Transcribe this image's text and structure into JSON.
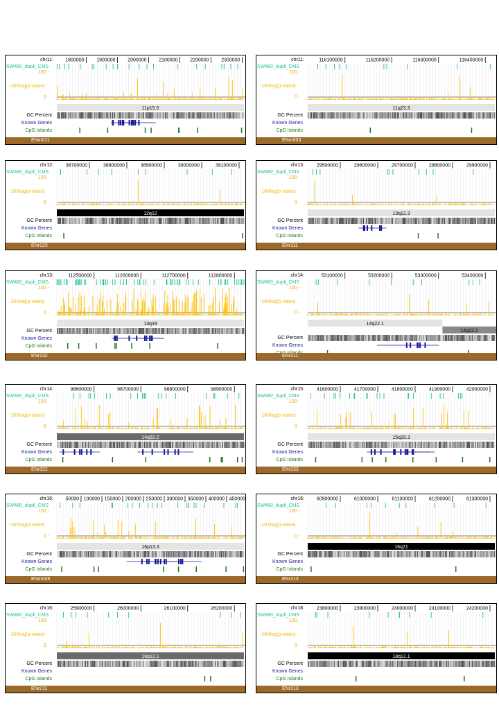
{
  "panels": [
    {
      "chrom": "chr11:",
      "ticks": [
        "1800000",
        "1900000",
        "2000000",
        "2100000",
        "2200000",
        "2300000"
      ],
      "band": "11p15.5",
      "band_style": "light",
      "enc": "ENm011",
      "signal": "mid"
    },
    {
      "chrom": "chr11:",
      "ticks": [
        "116100000",
        "116200000",
        "116300000",
        "116400000"
      ],
      "band": "11q23.3",
      "band_style": "light",
      "enc": "ENm003",
      "signal": "low"
    },
    {
      "chrom": "chr12:",
      "ticks": [
        "38700000",
        "38800000",
        "38900000",
        "39000000",
        "39100000"
      ],
      "band": "12q12",
      "band_style": "dark",
      "enc": "ENr123",
      "signal": "low"
    },
    {
      "chrom": "chr13:",
      "ticks": [
        "29500000",
        "29600000",
        "29700000",
        "29800000",
        "29900000"
      ],
      "band": "13q12.3",
      "band_style": "light",
      "enc": "ENr111",
      "signal": "low"
    },
    {
      "chrom": "chr13:",
      "ticks": [
        "112500000",
        "112600000",
        "112700000",
        "112800000"
      ],
      "band": "13q34",
      "band_style": "light",
      "enc": "ENr132",
      "signal": "high"
    },
    {
      "chrom": "chr14:",
      "ticks": [
        "53100000",
        "53200000",
        "53300000",
        "53400000"
      ],
      "band": "14q22.1",
      "band2": "14q22.2",
      "band_style": "split",
      "enc": "ENr311",
      "signal": "low"
    },
    {
      "chrom": "chr14:",
      "ticks": [
        "98600000",
        "98700000",
        "98800000",
        "98900000"
      ],
      "band": "14q32.2",
      "band_style": "mid",
      "enc": "ENr322",
      "signal": "mid"
    },
    {
      "chrom": "chr15:",
      "ticks": [
        "41600000",
        "41700000",
        "41800000",
        "41900000",
        "42000000"
      ],
      "band": "15q15.3",
      "band_style": "light",
      "enc": "ENr233",
      "signal": "mid"
    },
    {
      "chrom": "chr16:",
      "ticks": [
        "50000",
        "100000",
        "150000",
        "200000",
        "250000",
        "300000",
        "350000",
        "400000",
        "450000"
      ],
      "band": "16p13.3",
      "band_style": "light",
      "enc": "ENm008",
      "signal": "mid"
    },
    {
      "chrom": "chr16:",
      "ticks": [
        "60900000",
        "61000000",
        "61100000",
        "61200000",
        "61300000"
      ],
      "band": "16q21",
      "band_style": "dark",
      "enc": "ENr313",
      "signal": "low"
    },
    {
      "chrom": "chr16:",
      "ticks": [
        "25900000",
        "26000000",
        "26100000",
        "26200000"
      ],
      "band": "16p12.1",
      "band_style": "mid",
      "enc": "ENr211",
      "signal": "low"
    },
    {
      "chrom": "chr18:",
      "ticks": [
        "23800000",
        "23900000",
        "24000000",
        "24100000",
        "24200000"
      ],
      "band": "18q12.1",
      "band_style": "dark",
      "enc": "ENr213",
      "signal": "low"
    }
  ],
  "labels": {
    "sw": "SW480_dupli_CMS",
    "yaxis": "-10Xlog(p-value)",
    "y100": "100 -",
    "y0": "0 -",
    "gc": "GC Percent",
    "kg": "Known Genes",
    "cpg": "CpG Islands"
  },
  "colors": {
    "signal": "#ffc000",
    "sw": "#1fbf9e",
    "genes": "#1a1a99",
    "cpg": "#1a7a1a",
    "encode": "#9b6a2a"
  }
}
